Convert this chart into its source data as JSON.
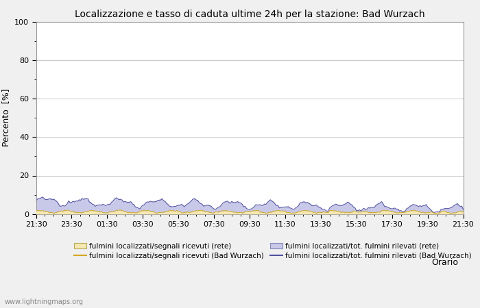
{
  "title": "Localizzazione e tasso di caduta ultime 24h per la stazione: Bad Wurzach",
  "ylabel": "Percento  [%]",
  "xlabel": "Orario",
  "ylim": [
    0,
    100
  ],
  "yticks_major": [
    0,
    20,
    40,
    60,
    80,
    100
  ],
  "yticks_minor": [
    10,
    30,
    50,
    70,
    90
  ],
  "xtick_labels": [
    "21:30",
    "23:30",
    "01:30",
    "03:30",
    "05:30",
    "07:30",
    "09:30",
    "11:30",
    "13:30",
    "15:30",
    "17:30",
    "19:30",
    "21:30"
  ],
  "background_color": "#f0f0f0",
  "plot_background": "#ffffff",
  "grid_color": "#c8c8c8",
  "fill_rete_color": "#f5e8b0",
  "fill_station_color": "#c8c8e8",
  "line_rete_color": "#d4a820",
  "line_station_color": "#5050a0",
  "watermark": "www.lightningmaps.org",
  "legend_labels": [
    "fulmini localizzati/segnali ricevuti (rete)",
    "fulmini localizzati/segnali ricevuti (Bad Wurzach)",
    "fulmini localizzati/tot. fulmini rilevati (rete)",
    "fulmini localizzati/tot. fulmini rilevati (Bad Wurzach)"
  ],
  "n_points": 289
}
